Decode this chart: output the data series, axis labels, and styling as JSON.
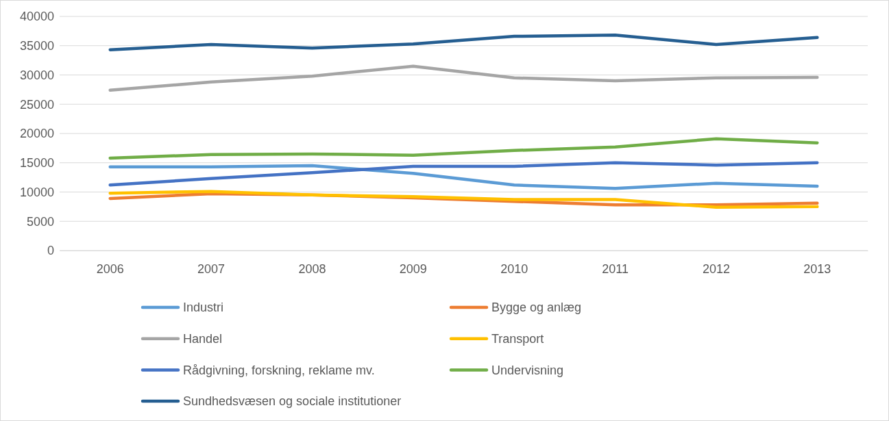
{
  "chart_data": {
    "type": "line",
    "categories": [
      "2006",
      "2007",
      "2008",
      "2009",
      "2010",
      "2011",
      "2012",
      "2013"
    ],
    "ylim": [
      0,
      40000
    ],
    "yticks": [
      0,
      5000,
      10000,
      15000,
      20000,
      25000,
      30000,
      35000,
      40000
    ],
    "grid": "y",
    "legend": "bottom",
    "marker": "none",
    "line_style": "solid",
    "series": [
      {
        "name": "Industri",
        "color": "#5b9bd5",
        "values": [
          14300,
          14300,
          14500,
          13200,
          11200,
          10600,
          11500,
          11000
        ]
      },
      {
        "name": "Bygge og anlæg",
        "color": "#ed7d31",
        "values": [
          8900,
          9700,
          9500,
          9000,
          8400,
          7800,
          7800,
          8100
        ]
      },
      {
        "name": "Handel",
        "color": "#a5a5a5",
        "values": [
          27400,
          28800,
          29800,
          31500,
          29500,
          29000,
          29500,
          29600
        ]
      },
      {
        "name": "Transport",
        "color": "#ffc000",
        "values": [
          9800,
          10100,
          9500,
          9200,
          8700,
          8700,
          7400,
          7500
        ]
      },
      {
        "name": "Rådgivning, forskning, reklame mv.",
        "color": "#4472c4",
        "values": [
          11200,
          12300,
          13300,
          14400,
          14400,
          15000,
          14600,
          15000
        ]
      },
      {
        "name": "Undervisning",
        "color": "#70ad47",
        "values": [
          15800,
          16400,
          16500,
          16300,
          17100,
          17700,
          19100,
          18400
        ]
      },
      {
        "name": "Sundhedsvæsen og sociale institutioner",
        "color": "#255e91",
        "values": [
          34300,
          35200,
          34600,
          35300,
          36600,
          36800,
          35200,
          36400
        ]
      }
    ]
  }
}
